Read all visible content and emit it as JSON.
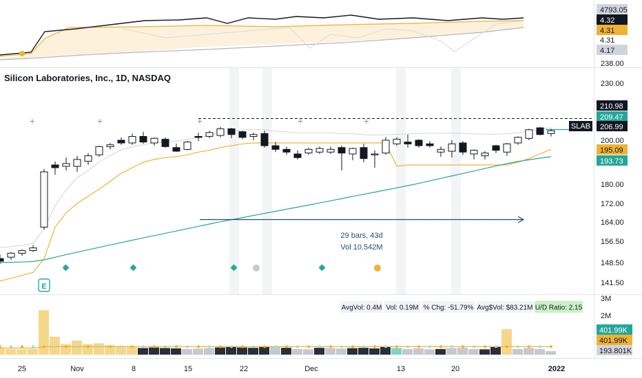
{
  "chart_title": "Silicon Laboratories, Inc., 1D, NASDAQ",
  "ticker": "SLAB",
  "colors": {
    "up": "#ffffff",
    "down": "#131722",
    "orange": "#f0b232",
    "teal": "#26a69a",
    "navy": "#1e4e79"
  },
  "indicator_panel": {
    "labels": [
      {
        "text": "4793.05",
        "bg": "#d1d4dc",
        "fg": "#131722"
      },
      {
        "text": "4.32",
        "bg": "#131722",
        "fg": "#ffffff"
      },
      {
        "text": "4.31",
        "bg": "#f0b232",
        "fg": "#131722"
      },
      {
        "text": "4.31",
        "bg": "none",
        "fg": "#131722"
      },
      {
        "text": "4.17",
        "bg": "#d1d4dc",
        "fg": "#131722"
      }
    ]
  },
  "price_axis": {
    "ticks": [
      "230.00",
      "200.00",
      "188.00",
      "180.00",
      "172.00",
      "164.00",
      "156.50",
      "148.50",
      "141.50"
    ],
    "partial_top": "238.00",
    "labels": [
      {
        "text": "210.98",
        "bg": "#131722",
        "fg": "#ffffff"
      },
      {
        "text": "209.47",
        "bg": "#26a69a",
        "fg": "#ffffff"
      },
      {
        "text": "206.99",
        "bg": "#131722",
        "fg": "#ffffff"
      },
      {
        "text": "195.09",
        "bg": "#f0b232",
        "fg": "#131722"
      },
      {
        "text": "193.73",
        "bg": "#26a69a",
        "fg": "#ffffff"
      }
    ]
  },
  "measure": {
    "bars_text": "29 bars, 43d",
    "vol_text": "Vol 10.542M"
  },
  "earnings_marker": "E",
  "volume_panel": {
    "stats": [
      {
        "text": "AvgVol: 0.4M",
        "highlight": false
      },
      {
        "text": "Vol: 0.19M",
        "highlight": false
      },
      {
        "text": "% Chg: -51.79%",
        "highlight": false
      },
      {
        "text": "Avg$Vol: $83.21M",
        "highlight": false
      },
      {
        "text": "U/D Ratio: 2.15",
        "highlight": true
      }
    ],
    "axis_ticks": [
      "3M",
      "2M",
      "1M"
    ],
    "labels": [
      {
        "text": "401.99K",
        "bg": "#26a69a",
        "fg": "#ffffff"
      },
      {
        "text": "401.99K",
        "bg": "#f0b232",
        "fg": "#131722"
      },
      {
        "text": "193.801K",
        "bg": "#d1d4dc",
        "fg": "#131722"
      }
    ]
  },
  "time_axis": {
    "labels": [
      "25",
      "Nov",
      "8",
      "15",
      "22",
      "Dec",
      "13",
      "20",
      "2022"
    ]
  },
  "chart_data": {
    "type": "candlestick",
    "candles": [
      {
        "o": 150.0,
        "h": 151.5,
        "l": 148.0,
        "c": 149.0
      },
      {
        "o": 150.5,
        "h": 152.5,
        "l": 149.5,
        "c": 152.0
      },
      {
        "o": 152.0,
        "h": 153.5,
        "l": 151.0,
        "c": 153.0
      },
      {
        "o": 153.0,
        "h": 155.0,
        "l": 152.5,
        "c": 154.0
      },
      {
        "o": 162.0,
        "h": 185.5,
        "l": 161.0,
        "c": 184.5
      },
      {
        "o": 187.0,
        "h": 188.5,
        "l": 183.5,
        "c": 186.0
      },
      {
        "o": 186.5,
        "h": 190.5,
        "l": 185.0,
        "c": 187.5
      },
      {
        "o": 186.5,
        "h": 191.5,
        "l": 184.5,
        "c": 189.5
      },
      {
        "o": 188.5,
        "h": 193.0,
        "l": 187.0,
        "c": 191.5
      },
      {
        "o": 192.0,
        "h": 197.0,
        "l": 191.0,
        "c": 196.5
      },
      {
        "o": 196.5,
        "h": 198.5,
        "l": 195.0,
        "c": 197.5
      },
      {
        "o": 200.0,
        "h": 201.5,
        "l": 197.5,
        "c": 198.5
      },
      {
        "o": 198.5,
        "h": 203.5,
        "l": 197.5,
        "c": 202.0
      },
      {
        "o": 202.0,
        "h": 204.5,
        "l": 198.0,
        "c": 199.0
      },
      {
        "o": 198.5,
        "h": 201.5,
        "l": 197.0,
        "c": 201.0
      },
      {
        "o": 200.5,
        "h": 201.5,
        "l": 196.0,
        "c": 196.5
      },
      {
        "o": 196.0,
        "h": 198.0,
        "l": 193.5,
        "c": 194.0
      },
      {
        "o": 195.0,
        "h": 199.5,
        "l": 194.5,
        "c": 199.0
      },
      {
        "o": 202.0,
        "h": 204.0,
        "l": 199.5,
        "c": 201.5
      },
      {
        "o": 202.0,
        "h": 205.0,
        "l": 201.0,
        "c": 204.0
      },
      {
        "o": 202.5,
        "h": 207.0,
        "l": 201.5,
        "c": 206.0
      },
      {
        "o": 206.0,
        "h": 206.5,
        "l": 201.0,
        "c": 203.0
      },
      {
        "o": 204.5,
        "h": 205.0,
        "l": 200.5,
        "c": 201.5
      },
      {
        "o": 202.0,
        "h": 204.0,
        "l": 200.0,
        "c": 203.0
      },
      {
        "o": 203.5,
        "h": 205.0,
        "l": 196.0,
        "c": 197.0
      },
      {
        "o": 197.0,
        "h": 199.0,
        "l": 193.5,
        "c": 195.0
      },
      {
        "o": 195.0,
        "h": 196.5,
        "l": 192.0,
        "c": 193.5
      },
      {
        "o": 192.5,
        "h": 194.5,
        "l": 189.5,
        "c": 190.5
      },
      {
        "o": 193.0,
        "h": 196.0,
        "l": 192.0,
        "c": 195.0
      },
      {
        "o": 193.5,
        "h": 196.5,
        "l": 192.5,
        "c": 195.5
      },
      {
        "o": 193.5,
        "h": 196.5,
        "l": 192.5,
        "c": 195.0
      },
      {
        "o": 196.0,
        "h": 197.0,
        "l": 185.0,
        "c": 193.0
      },
      {
        "o": 192.5,
        "h": 196.0,
        "l": 189.0,
        "c": 195.5
      },
      {
        "o": 196.0,
        "h": 198.0,
        "l": 188.0,
        "c": 190.0
      },
      {
        "o": 192.0,
        "h": 194.5,
        "l": 186.0,
        "c": 192.5
      },
      {
        "o": 193.0,
        "h": 201.5,
        "l": 192.0,
        "c": 200.0
      },
      {
        "o": 198.0,
        "h": 201.5,
        "l": 197.0,
        "c": 200.5
      },
      {
        "o": 199.0,
        "h": 203.0,
        "l": 196.0,
        "c": 198.0
      },
      {
        "o": 200.0,
        "h": 200.5,
        "l": 196.0,
        "c": 197.0
      },
      {
        "o": 198.0,
        "h": 199.5,
        "l": 196.0,
        "c": 197.0
      },
      {
        "o": 193.5,
        "h": 196.5,
        "l": 191.0,
        "c": 195.0
      },
      {
        "o": 194.0,
        "h": 200.0,
        "l": 190.5,
        "c": 198.0
      },
      {
        "o": 198.5,
        "h": 199.5,
        "l": 192.0,
        "c": 193.5
      },
      {
        "o": 192.5,
        "h": 195.0,
        "l": 189.5,
        "c": 194.5
      },
      {
        "o": 191.5,
        "h": 194.0,
        "l": 189.5,
        "c": 193.0
      },
      {
        "o": 197.0,
        "h": 197.5,
        "l": 193.0,
        "c": 194.5
      },
      {
        "o": 193.5,
        "h": 198.5,
        "l": 191.5,
        "c": 198.0
      },
      {
        "o": 198.5,
        "h": 202.0,
        "l": 197.5,
        "c": 201.5
      },
      {
        "o": 201.0,
        "h": 206.0,
        "l": 200.0,
        "c": 205.5
      },
      {
        "o": 206.5,
        "h": 207.0,
        "l": 202.5,
        "c": 203.0
      },
      {
        "o": 203.5,
        "h": 206.0,
        "l": 202.0,
        "c": 205.0
      }
    ],
    "volume": [
      0.33,
      0.3,
      0.28,
      0.3,
      2.35,
      0.95,
      0.55,
      0.75,
      0.55,
      0.6,
      0.5,
      0.45,
      0.42,
      0.35,
      0.38,
      0.35,
      0.33,
      0.3,
      0.32,
      0.35,
      0.38,
      0.4,
      0.38,
      0.36,
      0.4,
      0.42,
      0.36,
      0.3,
      0.28,
      0.36,
      0.35,
      0.32,
      0.34,
      0.36,
      0.33,
      0.42,
      0.35,
      0.3,
      0.33,
      0.28,
      0.3,
      0.34,
      0.36,
      0.3,
      0.28,
      0.42,
      1.35,
      0.3,
      0.35,
      0.3,
      0.19
    ],
    "bar_colors": [
      "y",
      "y",
      "y",
      "y",
      "y",
      "y",
      "y",
      "y",
      "y",
      "y",
      "y",
      "y",
      "y",
      "k",
      "k",
      "k",
      "k",
      "g",
      "g",
      "g",
      "k",
      "k",
      "k",
      "k",
      "k",
      "g",
      "k",
      "g",
      "g",
      "k",
      "g",
      "g",
      "k",
      "k",
      "k",
      "k",
      "t",
      "g",
      "g",
      "g",
      "k",
      "g",
      "g",
      "g",
      "k",
      "k",
      "y",
      "g",
      "g",
      "g",
      "g"
    ],
    "ema_fast": [
      149,
      149.3,
      149.8,
      150.5,
      156,
      165,
      172,
      177,
      180,
      183,
      185.5,
      187.5,
      189,
      190,
      191,
      191.5,
      192,
      193,
      194,
      195,
      196.5,
      197.5,
      198,
      198.5,
      198,
      197.5,
      197,
      196.5,
      196.5,
      196.5,
      196.5,
      196,
      196,
      195.5,
      195.3,
      195.5,
      195.7,
      196,
      196.2,
      196.3,
      196.3,
      196.4,
      196.2,
      196,
      195.8,
      195.8,
      196,
      196.5,
      197.5,
      198.5,
      199.3
    ],
    "ema_slow": [
      148.5,
      148.6,
      148.7,
      148.9,
      149.5,
      150.5,
      151.5,
      152.4,
      153.3,
      154.2,
      155.1,
      156.0,
      156.9,
      157.8,
      158.7,
      159.6,
      160.5,
      161.4,
      162.3,
      163.2,
      164.1,
      165.0,
      165.9,
      166.8,
      167.7,
      168.6,
      169.5,
      170.4,
      171.3,
      172.2,
      173.1,
      174.0,
      174.9,
      175.8,
      176.7,
      177.6,
      178.5,
      179.4,
      180.3,
      181.2,
      182.1,
      183.0,
      183.9,
      184.8,
      185.7,
      186.6,
      187.5,
      188.4,
      189.3,
      190.2,
      191.0
    ],
    "trail_stop": [
      142,
      143,
      144,
      145,
      150,
      162,
      168,
      172,
      175,
      178,
      181,
      184,
      186,
      188,
      189.5,
      190.5,
      191,
      192,
      193.5,
      194.5,
      196,
      197,
      198,
      198.5,
      198.5,
      198.5,
      198.5,
      198.5,
      198.5,
      198.5,
      198.5,
      198.5,
      198.5,
      198.5,
      198.5,
      198.5,
      186.5,
      187,
      187,
      187,
      187,
      187,
      187,
      187,
      187,
      187,
      187,
      188,
      190,
      192.5,
      195.09
    ],
    "ylim": [
      138,
      240
    ]
  }
}
